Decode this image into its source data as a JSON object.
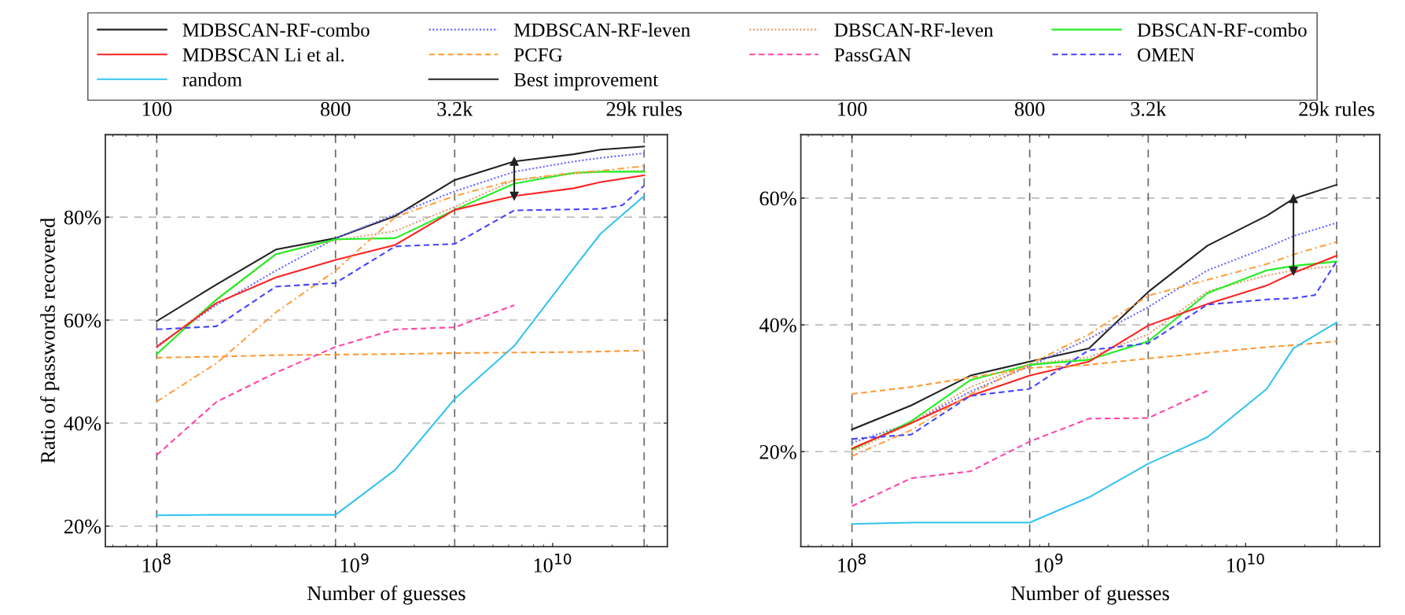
{
  "chart_data": [
    {
      "type": "line",
      "ylabel": "Ratio of passwords recovered",
      "xlabel": "Number of guesses",
      "log": "x",
      "grid": "y",
      "legend": "top",
      "x": [
        100000000.0,
        200000000.0,
        400000000.0,
        800000000.0,
        1600000000.0,
        3200000000.0,
        6400000000.0,
        12800000000.0,
        17500000000.0,
        29000000000.0
      ],
      "xlim": [
        55000000.0,
        38000000000.0
      ],
      "xticks": [
        {
          "value": 100000000.0,
          "label": "10$^{8}$"
        },
        {
          "value": 1000000000.0,
          "label": "10$^{9}$"
        },
        {
          "value": 10000000000.0,
          "label": "10$^{10}$"
        }
      ],
      "ref_lines": [
        {
          "axis": "x",
          "value": 100000000.0,
          "line_style": "dashed",
          "color": "#666666"
        },
        {
          "axis": "x",
          "value": 800000000.0,
          "line_style": "dashed",
          "color": "#666666"
        },
        {
          "axis": "x",
          "value": 3200000000.0,
          "line_style": "dashed",
          "color": "#666666"
        },
        {
          "axis": "x",
          "value": 29000000000.0,
          "line_style": "dashed",
          "color": "#666666"
        }
      ],
      "annotations": [
        "100",
        "800",
        "3.2k",
        "29k rules"
      ],
      "ylim": [
        16,
        96
      ],
      "yticks": [
        {
          "value": 20,
          "label": "20%"
        },
        {
          "value": 40,
          "label": "40%"
        },
        {
          "value": 60,
          "label": "60%"
        },
        {
          "value": 80,
          "label": "80%"
        }
      ],
      "series": [
        {
          "name": "MDBSCAN-RF-combo",
          "color": "#222222",
          "line_style": "solid",
          "values": [
            59.8,
            66.9,
            73.7,
            75.9,
            80.2,
            87.2,
            90.8,
            92.2,
            93.1,
            93.7
          ]
        },
        {
          "name": "MDBSCAN-RF-leven",
          "color": "#6666ff",
          "line_style": "dotted",
          "values": [
            55.0,
            62.9,
            69.6,
            75.9,
            80.5,
            85.0,
            88.8,
            90.8,
            91.5,
            92.4
          ]
        },
        {
          "name": "DBSCAN-RF-leven",
          "color": "#e0a070",
          "line_style": "dotted",
          "values": [
            54.6,
            63.8,
            72.8,
            75.5,
            77.3,
            82.0,
            87.2,
            88.4,
            88.8,
            89.0
          ]
        },
        {
          "name": "DBSCAN-RF-combo",
          "color": "#22ee22",
          "line_style": "solid",
          "values": [
            53.4,
            64.0,
            72.8,
            75.7,
            75.9,
            81.4,
            86.5,
            88.6,
            88.8,
            88.8
          ]
        },
        {
          "name": "MDBSCAN Li et al.",
          "color": "#ff2222",
          "line_style": "solid",
          "values": [
            54.8,
            63.3,
            68.3,
            71.7,
            74.6,
            81.4,
            84.1,
            85.6,
            86.8,
            88.1
          ]
        },
        {
          "color": "#ffa040",
          "line_style": "dashdot",
          "values": [
            44.2,
            51.6,
            61.5,
            69.6,
            80.0,
            84.1,
            87.2,
            88.6,
            89.0,
            89.9
          ]
        },
        {
          "name": "PCFG",
          "color": "#ff9933",
          "line_style": "dashed",
          "values": [
            52.7,
            52.9,
            53.2,
            53.3,
            53.4,
            53.6,
            53.7,
            53.8,
            53.9,
            54.1
          ]
        },
        {
          "name": "PassGAN",
          "color": "#ff44aa",
          "line_style": "dashed",
          "values": [
            33.8,
            44.1,
            49.8,
            54.8,
            58.2,
            58.6,
            62.9,
            null,
            null,
            null
          ]
        },
        {
          "name": "OMEN",
          "color": "#4444ff",
          "line_style": "dashed",
          "x": [
            100000000.0,
            200000000.0,
            400000000.0,
            800000000.0,
            1600000000.0,
            3200000000.0,
            6400000000.0,
            12800000000.0,
            17500000000.0,
            22500000000.0,
            29000000000.0
          ],
          "values": [
            58.2,
            58.8,
            66.5,
            67.2,
            74.3,
            74.8,
            81.3,
            81.5,
            81.6,
            82.3,
            86.1
          ]
        },
        {
          "name": "random",
          "color": "#33c4f0",
          "line_style": "solid",
          "values": [
            22.1,
            22.2,
            22.2,
            22.2,
            30.9,
            44.7,
            55.0,
            70.1,
            76.8,
            84.1
          ]
        },
        {
          "name": "Best improvement",
          "type": "line",
          "marker": "triangle",
          "line_style": "solid",
          "color": "#222222",
          "x": [
            6400000000.0,
            6400000000.0
          ],
          "values": [
            84.1,
            90.8
          ]
        }
      ]
    },
    {
      "type": "line",
      "xlabel": "Number of guesses",
      "log": "x",
      "grid": "y",
      "x": [
        100000000.0,
        200000000.0,
        400000000.0,
        800000000.0,
        1600000000.0,
        3200000000.0,
        6400000000.0,
        12800000000.0,
        17500000000.0,
        29000000000.0
      ],
      "xlim": [
        55000000.0,
        48000000000.0
      ],
      "xticks": [
        {
          "value": 100000000.0,
          "label": "10$^{8}$"
        },
        {
          "value": 1000000000.0,
          "label": "10$^{9}$"
        },
        {
          "value": 10000000000.0,
          "label": "10$^{10}$"
        }
      ],
      "ref_lines": [
        {
          "axis": "x",
          "value": 100000000.0,
          "line_style": "dashed",
          "color": "#666666"
        },
        {
          "axis": "x",
          "value": 800000000.0,
          "line_style": "dashed",
          "color": "#666666"
        },
        {
          "axis": "x",
          "value": 3200000000.0,
          "line_style": "dashed",
          "color": "#666666"
        },
        {
          "axis": "x",
          "value": 29000000000.0,
          "line_style": "dashed",
          "color": "#666666"
        }
      ],
      "annotations": [
        "100",
        "800",
        "3.2k",
        "29k rules"
      ],
      "ylim": [
        5,
        70
      ],
      "yticks": [
        {
          "value": 20,
          "label": "20%"
        },
        {
          "value": 40,
          "label": "40%"
        },
        {
          "value": 60,
          "label": "60%"
        }
      ],
      "series": [
        {
          "color": "#222222",
          "line_style": "solid",
          "values": [
            23.5,
            27.3,
            32.0,
            34.2,
            36.3,
            45.2,
            52.5,
            57.2,
            59.9,
            62.1
          ]
        },
        {
          "color": "#6666ff",
          "line_style": "dotted",
          "values": [
            21.4,
            24.5,
            29.5,
            33.5,
            37.8,
            42.8,
            48.6,
            52.2,
            54.0,
            56.1
          ]
        },
        {
          "color": "#e0a070",
          "line_style": "dotted",
          "values": [
            20.0,
            24.5,
            30.2,
            33.8,
            34.9,
            38.5,
            45.3,
            47.8,
            48.6,
            49.3
          ]
        },
        {
          "color": "#22ee22",
          "line_style": "solid",
          "values": [
            20.3,
            24.8,
            31.3,
            33.7,
            34.5,
            37.4,
            45.0,
            48.6,
            49.3,
            50.0
          ]
        },
        {
          "color": "#ff2222",
          "line_style": "solid",
          "values": [
            20.5,
            24.5,
            28.8,
            32.0,
            34.2,
            39.9,
            43.3,
            46.2,
            48.2,
            50.9
          ]
        },
        {
          "color": "#ffa040",
          "line_style": "dashdot",
          "values": [
            19.3,
            23.4,
            29.1,
            33.8,
            38.5,
            44.6,
            47.1,
            49.6,
            51.1,
            53.1
          ]
        },
        {
          "color": "#ff9933",
          "line_style": "dashed",
          "values": [
            29.1,
            30.2,
            31.7,
            33.2,
            33.7,
            34.7,
            35.6,
            36.5,
            36.8,
            37.4
          ]
        },
        {
          "color": "#ff44aa",
          "line_style": "dashed",
          "values": [
            11.4,
            15.8,
            16.9,
            21.6,
            25.2,
            25.3,
            29.6,
            null,
            null,
            null
          ]
        },
        {
          "color": "#4444ff",
          "line_style": "dashed",
          "x": [
            100000000.0,
            200000000.0,
            400000000.0,
            800000000.0,
            1600000000.0,
            3200000000.0,
            6400000000.0,
            12800000000.0,
            17500000000.0,
            22500000000.0,
            29000000000.0
          ],
          "values": [
            22.0,
            22.7,
            28.8,
            29.9,
            36.0,
            37.1,
            43.2,
            44.0,
            44.2,
            44.7,
            50.0
          ]
        },
        {
          "color": "#33c4f0",
          "line_style": "solid",
          "values": [
            8.6,
            8.8,
            8.8,
            8.8,
            12.8,
            18.1,
            22.3,
            29.9,
            36.3,
            40.4
          ]
        },
        {
          "type": "line",
          "marker": "triangle",
          "line_style": "solid",
          "color": "#222222",
          "x": [
            17500000000.0,
            17500000000.0
          ],
          "values": [
            48.5,
            59.9
          ]
        }
      ]
    }
  ]
}
